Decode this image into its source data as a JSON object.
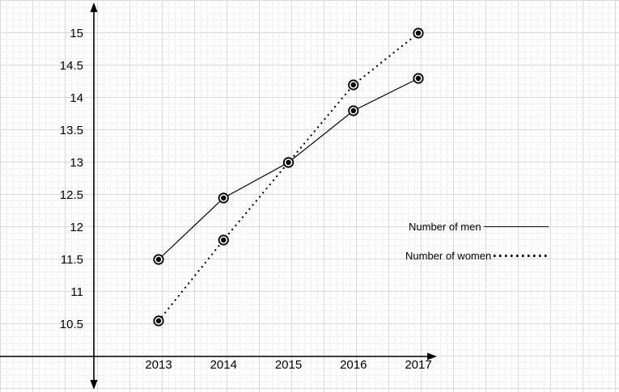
{
  "chart_data": {
    "type": "line",
    "x": [
      "2013",
      "2014",
      "2015",
      "2016",
      "2017"
    ],
    "series": [
      {
        "name": "Number of men",
        "style": "solid",
        "values": [
          11.5,
          12.45,
          13,
          13.8,
          14.3
        ]
      },
      {
        "name": "Number of women",
        "style": "dotted",
        "values": [
          10.55,
          11.8,
          13,
          14.2,
          15
        ]
      }
    ],
    "y_ticks": [
      15,
      14.5,
      14,
      13.5,
      13,
      12.5,
      12,
      11.5,
      11,
      10.5
    ],
    "ylim": [
      10,
      15.5
    ],
    "title": "",
    "xlabel": "",
    "ylabel": "",
    "grid": "graph-paper",
    "legend_position": "middle-right",
    "marker": "filled-circle-with-ring",
    "colors": {
      "line": "#000000",
      "text": "#000000",
      "marker_fill": "#000000",
      "marker_ring": "#ffffff",
      "grid_major": "#d7d7d7",
      "grid_minor": "#f1efef",
      "background": "#ffffff"
    }
  },
  "legend": {
    "men_label": "Number of men",
    "women_label": "Number of women"
  }
}
